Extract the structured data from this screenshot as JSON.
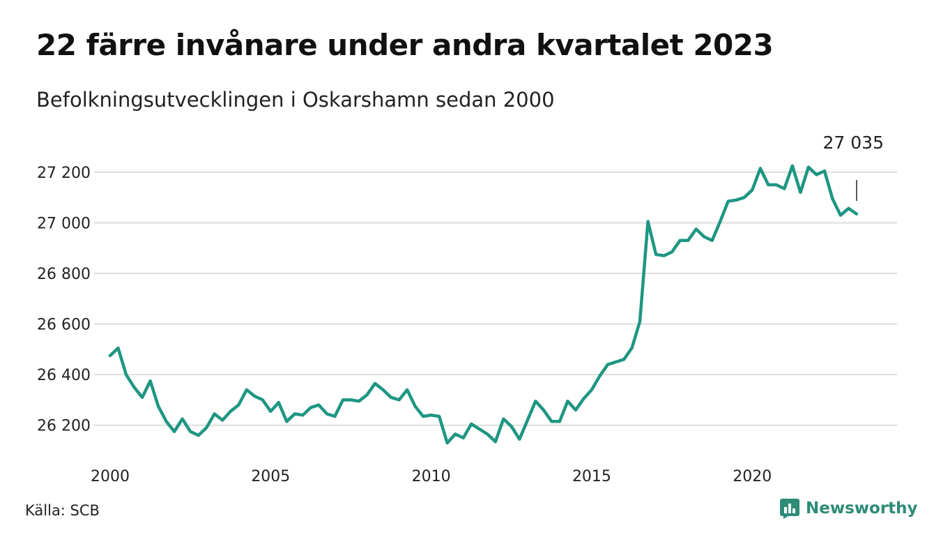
{
  "title": "22 färre invånare under andra kvartalet 2023",
  "subtitle": "Befolkningsutvecklingen i Oskarshamn sedan 2000",
  "source": "Källa: SCB",
  "brand": {
    "name": "Newsworthy",
    "icon": "newsworthy-logo-icon"
  },
  "colors": {
    "line": "#1e9682",
    "grid": "#dddddd",
    "brand": "#2e8b77"
  },
  "chart_data": {
    "type": "line",
    "title": "22 färre invånare under andra kvartalet 2023",
    "xlabel": "",
    "ylabel": "",
    "x_ticks": [
      {
        "value": 2000,
        "label": "2000"
      },
      {
        "value": 2005,
        "label": "2005"
      },
      {
        "value": 2010,
        "label": "2010"
      },
      {
        "value": 2015,
        "label": "2015"
      },
      {
        "value": 2020,
        "label": "2020"
      }
    ],
    "y_ticks": [
      {
        "value": 26200,
        "label": "26 200"
      },
      {
        "value": 26400,
        "label": "26 400"
      },
      {
        "value": 26600,
        "label": "26 600"
      },
      {
        "value": 26800,
        "label": "26 800"
      },
      {
        "value": 27000,
        "label": "27 000"
      },
      {
        "value": 27200,
        "label": "27 200"
      }
    ],
    "xlim": [
      2000,
      2023.75
    ],
    "ylim": [
      26100,
      27230
    ],
    "grid": true,
    "annotation": {
      "text": "27 035",
      "x": 2023.25,
      "y": 27035
    },
    "series": [
      {
        "x": [
          2000,
          2000.25,
          2000.5,
          2000.75,
          2001,
          2001.25,
          2001.5,
          2001.75,
          2002,
          2002.25,
          2002.5,
          2002.75,
          2003,
          2003.25,
          2003.5,
          2003.75,
          2004,
          2004.25,
          2004.5,
          2004.75,
          2005,
          2005.25,
          2005.5,
          2005.75,
          2006,
          2006.25,
          2006.5,
          2006.75,
          2007,
          2007.25,
          2007.5,
          2007.75,
          2008,
          2008.25,
          2008.5,
          2008.75,
          2009,
          2009.25,
          2009.5,
          2009.75,
          2010,
          2010.25,
          2010.5,
          2010.75,
          2011,
          2011.25,
          2011.5,
          2011.75,
          2012,
          2012.25,
          2012.5,
          2012.75,
          2013,
          2013.25,
          2013.5,
          2013.75,
          2014,
          2014.25,
          2014.5,
          2014.75,
          2015,
          2015.25,
          2015.5,
          2015.75,
          2016,
          2016.25,
          2016.5,
          2016.75,
          2017,
          2017.25,
          2017.5,
          2017.75,
          2018,
          2018.25,
          2018.5,
          2018.75,
          2019,
          2019.25,
          2019.5,
          2019.75,
          2020,
          2020.25,
          2020.5,
          2020.75,
          2021,
          2021.25,
          2021.5,
          2021.75,
          2022,
          2022.25,
          2022.5,
          2022.75,
          2023,
          2023.25
        ],
        "values": [
          26475,
          26505,
          26400,
          26350,
          26310,
          26375,
          26275,
          26215,
          26175,
          26225,
          26175,
          26160,
          26190,
          26245,
          26220,
          26255,
          26280,
          26340,
          26315,
          26300,
          26255,
          26290,
          26215,
          26245,
          26240,
          26270,
          26280,
          26245,
          26235,
          26300,
          26300,
          26295,
          26320,
          26365,
          26340,
          26310,
          26300,
          26340,
          26275,
          26235,
          26240,
          26235,
          26130,
          26165,
          26150,
          26205,
          26185,
          26165,
          26135,
          26225,
          26195,
          26145,
          26220,
          26295,
          26260,
          26215,
          26215,
          26295,
          26260,
          26305,
          26340,
          26395,
          26440,
          26450,
          26460,
          26505,
          26610,
          27005,
          26875,
          26870,
          26885,
          26930,
          26930,
          26975,
          26945,
          26930,
          27005,
          27085,
          27090,
          27100,
          27130,
          27215,
          27150,
          27150,
          27135,
          27225,
          27120,
          27220,
          27190,
          27205,
          27095,
          27030,
          27057,
          27035
        ]
      }
    ]
  }
}
